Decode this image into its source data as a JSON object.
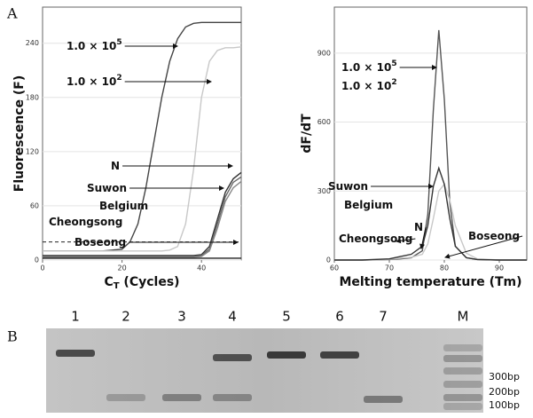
{
  "panel_a_label": "A",
  "chart_data": [
    {
      "type": "line",
      "ylabel": "Fluorescence (F)",
      "xlabel": {
        "text": "C",
        "sub": "T",
        "rest": " (Cycles)"
      },
      "x": [
        0,
        5,
        10,
        15,
        20,
        22,
        24,
        26,
        28,
        30,
        32,
        34,
        36,
        38,
        40,
        42,
        44,
        46,
        48,
        50
      ],
      "xlim": [
        0,
        50
      ],
      "xticks": [
        0,
        20,
        40
      ],
      "ylim": [
        0,
        280
      ],
      "yticks": [
        0,
        60,
        120,
        180,
        240
      ],
      "threshold": 20,
      "series": [
        {
          "color": "#444444",
          "values": [
            10,
            10,
            10,
            10,
            12,
            20,
            40,
            80,
            130,
            180,
            220,
            245,
            258,
            262,
            263,
            263,
            263,
            263,
            263,
            263
          ]
        },
        {
          "color": "#c8c8c8",
          "values": [
            10,
            10,
            10,
            10,
            10,
            10,
            10,
            10,
            10,
            10,
            11,
            15,
            40,
            100,
            180,
            220,
            232,
            235,
            235,
            236
          ]
        },
        {
          "color": "#333333",
          "values": [
            5,
            5,
            5,
            5,
            5,
            5,
            5,
            5,
            5,
            5,
            5,
            5,
            5,
            5,
            6,
            15,
            45,
            75,
            90,
            97
          ]
        },
        {
          "color": "#666666",
          "values": [
            4,
            4,
            4,
            4,
            4,
            4,
            4,
            4,
            4,
            4,
            4,
            4,
            4,
            4,
            5,
            12,
            40,
            70,
            86,
            92
          ]
        },
        {
          "color": "#888888",
          "values": [
            3,
            3,
            3,
            3,
            3,
            3,
            3,
            3,
            3,
            3,
            3,
            3,
            3,
            3,
            4,
            10,
            35,
            65,
            80,
            87
          ]
        },
        {
          "color": "#222222",
          "values": [
            2,
            2,
            2,
            2,
            2,
            2,
            2,
            2,
            2,
            2,
            2,
            2,
            2,
            2,
            2,
            2,
            2,
            2,
            2,
            2
          ]
        }
      ],
      "annotations": [
        {
          "text": "1.0 × 10",
          "sup": "5"
        },
        {
          "text": "1.0 × 10",
          "sup": "2"
        },
        {
          "text": "N"
        },
        {
          "text": "Suwon"
        },
        {
          "text": "Belgium"
        },
        {
          "text": "Cheongsong"
        },
        {
          "text": "Boseong"
        }
      ]
    },
    {
      "type": "line",
      "ylabel": "dF/dT",
      "xlabel": {
        "text": "Melting temperature (Tm)"
      },
      "x": [
        60,
        65,
        70,
        72,
        74,
        76,
        77,
        78,
        79,
        80,
        81,
        82,
        84,
        86,
        90,
        95
      ],
      "xlim": [
        60,
        95
      ],
      "xticks": [
        60,
        70,
        80,
        90
      ],
      "ylim": [
        0,
        1100
      ],
      "yticks": [
        0,
        300,
        600,
        900
      ],
      "series": [
        {
          "color": "#555555",
          "values": [
            0,
            0,
            2,
            5,
            10,
            40,
            200,
            650,
            1000,
            700,
            250,
            60,
            10,
            2,
            0,
            0
          ]
        },
        {
          "color": "#c8c8c8",
          "values": [
            0,
            0,
            3,
            8,
            12,
            25,
            70,
            180,
            300,
            330,
            260,
            150,
            30,
            5,
            0,
            0
          ]
        },
        {
          "color": "#333333",
          "values": [
            0,
            0,
            5,
            15,
            25,
            60,
            150,
            320,
            400,
            330,
            180,
            60,
            10,
            2,
            0,
            0
          ]
        }
      ],
      "annotations": [
        {
          "text": "1.0 × 10",
          "sup": "5"
        },
        {
          "text": "1.0 × 10",
          "sup": "2"
        },
        {
          "text": "Suwon"
        },
        {
          "text": "Belgium"
        },
        {
          "text": "N"
        },
        {
          "text": "Cheongsong"
        },
        {
          "text": "Boseong"
        }
      ]
    }
  ],
  "gel": {
    "label": "B",
    "lanes": [
      "1",
      "2",
      "3",
      "4",
      "5",
      "6",
      "7",
      "M"
    ],
    "sizes": [
      "300bp",
      "200bp",
      "100bp"
    ]
  }
}
